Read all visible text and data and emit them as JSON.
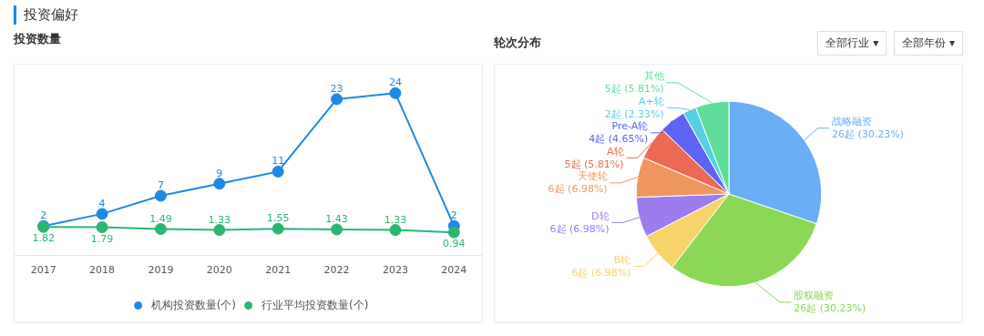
{
  "chart_data": [
    {
      "type": "line",
      "title": "投资数量",
      "annotations": [
        "投资偏好"
      ],
      "categories": [
        "2017",
        "2018",
        "2019",
        "2020",
        "2021",
        "2022",
        "2023",
        "2024"
      ],
      "series": [
        {
          "name": "机构投资数量(个)",
          "color": "#1e88e5",
          "values": [
            2,
            4,
            7,
            9,
            11,
            23,
            24,
            2
          ]
        },
        {
          "name": "行业平均投资数量(个)",
          "color": "#2bb673",
          "values": [
            1.82,
            1.79,
            1.49,
            1.33,
            1.55,
            1.43,
            1.33,
            0.94
          ]
        }
      ],
      "data_labels": true,
      "legend": "bottom",
      "marker": "circle",
      "grid": false,
      "tick_labels": "x"
    },
    {
      "type": "pie",
      "title": "轮次分布",
      "annotations": [
        "全部行业 ▾",
        "全部年份 ▾"
      ],
      "categories": [
        "战略融资",
        "股权融资",
        "B轮",
        "D轮",
        "天使轮",
        "A轮",
        "Pre-A轮",
        "A+轮",
        "其他"
      ],
      "values": [
        26,
        26,
        6,
        6,
        6,
        5,
        4,
        2,
        5
      ],
      "colors": [
        "#6aaef5",
        "#8ad856",
        "#f7d46a",
        "#9d7cf0",
        "#f0975f",
        "#ec6a55",
        "#5f63f5",
        "#55d0e6",
        "#5ede9a"
      ],
      "value_labels": [
        "26起 (30.23%)",
        "26起 (30.23%)",
        "6起 (6.98%)",
        "6起 (6.98%)",
        "6起 (6.98%)",
        "5起 (5.81%)",
        "4起 (4.65%)",
        "2起 (2.33%)",
        "5起 (5.81%)"
      ]
    }
  ]
}
